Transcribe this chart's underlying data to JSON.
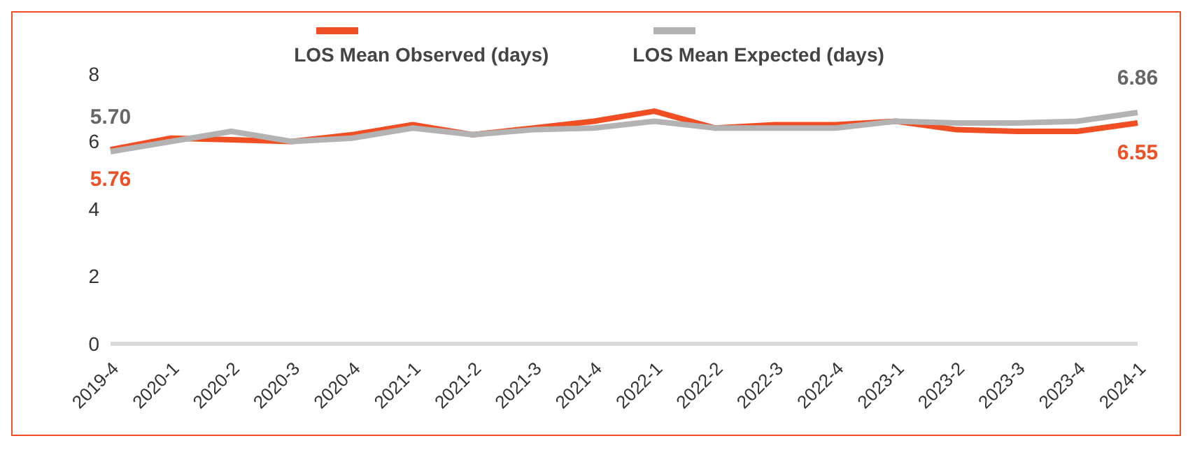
{
  "chart_data": {
    "type": "line",
    "categories": [
      "2019-4",
      "2020-1",
      "2020-2",
      "2020-3",
      "2020-4",
      "2021-1",
      "2021-2",
      "2021-3",
      "2021-4",
      "2022-1",
      "2022-2",
      "2022-3",
      "2022-4",
      "2023-1",
      "2023-2",
      "2023-3",
      "2023-4",
      "2024-1"
    ],
    "series": [
      {
        "name": "LOS Mean Observed (days)",
        "color": "#f04e23",
        "values": [
          5.76,
          6.1,
          6.05,
          6.0,
          6.2,
          6.5,
          6.2,
          6.4,
          6.6,
          6.9,
          6.4,
          6.5,
          6.5,
          6.6,
          6.35,
          6.3,
          6.3,
          6.55
        ],
        "value_labels": [
          "5.76",
          null,
          null,
          null,
          null,
          null,
          null,
          null,
          null,
          null,
          null,
          null,
          null,
          null,
          null,
          null,
          null,
          "6.55"
        ]
      },
      {
        "name": "LOS Mean Expected (days)",
        "color": "#b3b3b3",
        "values": [
          5.7,
          6.0,
          6.3,
          6.0,
          6.1,
          6.4,
          6.2,
          6.35,
          6.4,
          6.6,
          6.4,
          6.4,
          6.4,
          6.6,
          6.55,
          6.55,
          6.6,
          6.86
        ],
        "value_labels": [
          "5.70",
          null,
          null,
          null,
          null,
          null,
          null,
          null,
          null,
          null,
          null,
          null,
          null,
          null,
          null,
          null,
          null,
          "6.86"
        ]
      }
    ],
    "ylim": [
      0,
      8
    ],
    "yticks": [
      0,
      2,
      4,
      6,
      8
    ],
    "grid": false,
    "legend": "top",
    "marker": "none",
    "line_style": "solid"
  }
}
